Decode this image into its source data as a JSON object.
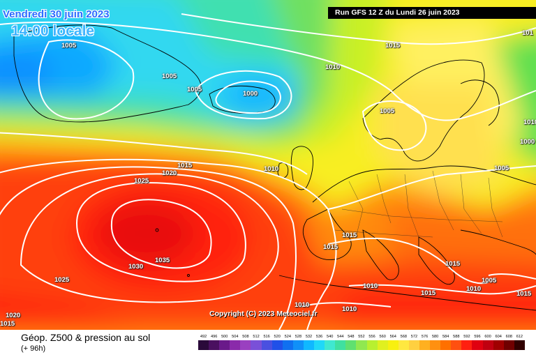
{
  "header": {
    "date": "Vendredi 30 juin 2023",
    "time": "14:00 locale",
    "run": "Run GFS 12 Z du Lundi 26 juin 2023"
  },
  "copyright": "Copyright (C) 2023 Meteociel.fr",
  "footer": {
    "title": "Géop. Z500 & pression au sol",
    "subtitle": "(+ 96h)"
  },
  "legend": {
    "labels": [
      "492",
      "496",
      "500",
      "504",
      "508",
      "512",
      "516",
      "520",
      "524",
      "528",
      "532",
      "536",
      "540",
      "544",
      "548",
      "552",
      "556",
      "560",
      "564",
      "568",
      "572",
      "576",
      "580",
      "584",
      "588",
      "592",
      "596",
      "600",
      "604",
      "608",
      "612"
    ],
    "colors": [
      "#2a0a3a",
      "#4a1060",
      "#6a1a8a",
      "#8a2aaa",
      "#9a40c0",
      "#7a50d8",
      "#4a50e0",
      "#2050e8",
      "#1070f0",
      "#1090f8",
      "#10b8ff",
      "#20d8f8",
      "#40e8d0",
      "#40e0a0",
      "#60e070",
      "#90e850",
      "#b8f030",
      "#e0f020",
      "#f8f010",
      "#ffe840",
      "#ffd040",
      "#ffb020",
      "#ff9010",
      "#ff7000",
      "#ff5010",
      "#ff2010",
      "#e00010",
      "#c00010",
      "#a00000",
      "#700000",
      "#300000"
    ]
  },
  "isobar_labels": {
    "l1005a": "1005",
    "l1005b": "1005",
    "l1005c": "1005",
    "l1005d": "1005",
    "l1005e": "1005",
    "l1005f": "1005",
    "l1000": "1000",
    "l1010a": "1010",
    "l1010b": "1010",
    "l1010c": "1010",
    "l1010d": "1010",
    "l1010e": "1010",
    "l1010f": "1010",
    "l1015a": "1015",
    "l1015b": "1015",
    "l1015c": "1015",
    "l1015d": "1015",
    "l1015e": "1015",
    "l1015f": "1015",
    "l1015g": "1015",
    "l1020a": "1020",
    "l1020b": "1020",
    "l1025a": "1025",
    "l1025b": "1025",
    "l1030": "1030",
    "l1035": "1035",
    "l101r": "101",
    "l1000r": "1000"
  }
}
